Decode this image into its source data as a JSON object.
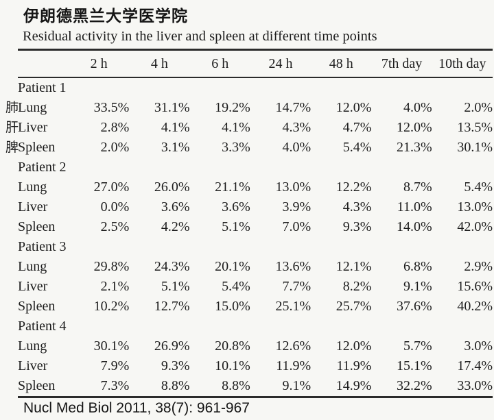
{
  "page": {
    "title_cn": "伊朗德黑兰大学医学院",
    "subtitle": "Residual activity in the liver and spleen at different time points",
    "citation": "Nucl Med Biol 2011, 38(7): 961-967"
  },
  "side_labels_cn": [
    "肺",
    "肝",
    "脾"
  ],
  "colors": {
    "background": "#f7f7f4",
    "text": "#1d1d1d",
    "rule": "#2b2b2b"
  },
  "chart_data": {
    "type": "table",
    "title": "Residual activity in the liver and spleen at different time points",
    "columns": [
      "2 h",
      "4 h",
      "6 h",
      "24 h",
      "48 h",
      "7th day",
      "10th day"
    ],
    "patients": [
      {
        "name": "Patient 1",
        "organs": [
          {
            "label": "Lung",
            "values": [
              "33.5%",
              "31.1%",
              "19.2%",
              "14.7%",
              "12.0%",
              "4.0%",
              "2.0%"
            ]
          },
          {
            "label": "Liver",
            "values": [
              "2.8%",
              "4.1%",
              "4.1%",
              "4.3%",
              "4.7%",
              "12.0%",
              "13.5%"
            ]
          },
          {
            "label": "Spleen",
            "values": [
              "2.0%",
              "3.1%",
              "3.3%",
              "4.0%",
              "5.4%",
              "21.3%",
              "30.1%"
            ]
          }
        ]
      },
      {
        "name": "Patient 2",
        "organs": [
          {
            "label": "Lung",
            "values": [
              "27.0%",
              "26.0%",
              "21.1%",
              "13.0%",
              "12.2%",
              "8.7%",
              "5.4%"
            ]
          },
          {
            "label": "Liver",
            "values": [
              "0.0%",
              "3.6%",
              "3.6%",
              "3.9%",
              "4.3%",
              "11.0%",
              "13.0%"
            ]
          },
          {
            "label": "Spleen",
            "values": [
              "2.5%",
              "4.2%",
              "5.1%",
              "7.0%",
              "9.3%",
              "14.0%",
              "42.0%"
            ]
          }
        ]
      },
      {
        "name": "Patient 3",
        "organs": [
          {
            "label": "Lung",
            "values": [
              "29.8%",
              "24.3%",
              "20.1%",
              "13.6%",
              "12.1%",
              "6.8%",
              "2.9%"
            ]
          },
          {
            "label": "Liver",
            "values": [
              "2.1%",
              "5.1%",
              "5.4%",
              "7.7%",
              "8.2%",
              "9.1%",
              "15.6%"
            ]
          },
          {
            "label": "Spleen",
            "values": [
              "10.2%",
              "12.7%",
              "15.0%",
              "25.1%",
              "25.7%",
              "37.6%",
              "40.2%"
            ]
          }
        ]
      },
      {
        "name": "Patient 4",
        "organs": [
          {
            "label": "Lung",
            "values": [
              "30.1%",
              "26.9%",
              "20.8%",
              "12.6%",
              "12.0%",
              "5.7%",
              "3.0%"
            ]
          },
          {
            "label": "Liver",
            "values": [
              "7.9%",
              "9.3%",
              "10.1%",
              "11.9%",
              "11.9%",
              "15.1%",
              "17.4%"
            ]
          },
          {
            "label": "Spleen",
            "values": [
              "7.3%",
              "8.8%",
              "8.8%",
              "9.1%",
              "14.9%",
              "32.2%",
              "33.0%"
            ]
          }
        ]
      }
    ]
  }
}
